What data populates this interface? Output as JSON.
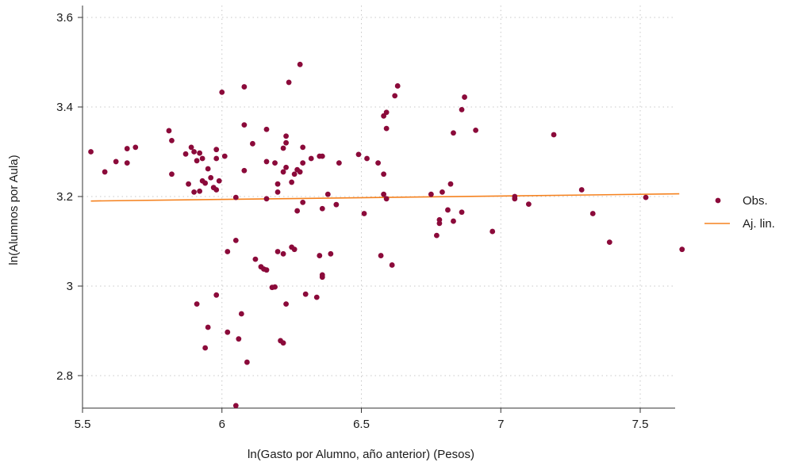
{
  "chart_data": {
    "type": "scatter",
    "xlabel": "ln(Gasto por Alumno, año anterior) (Pesos)",
    "ylabel": "ln(Alumnos por Aula)",
    "xlim": [
      5.5,
      7.65
    ],
    "ylim": [
      2.72,
      3.62
    ],
    "xticks": [
      5.5,
      6,
      6.5,
      7,
      7.5
    ],
    "xtick_labels": [
      "5.5",
      "6",
      "6.5",
      "7",
      "7.5"
    ],
    "yticks": [
      2.8,
      3,
      3.2,
      3.4,
      3.6
    ],
    "ytick_labels": [
      "2.8",
      "3",
      "3.2",
      "3.4",
      "3.6"
    ],
    "grid": "dotted",
    "legend_position": "right",
    "series": [
      {
        "name": "Obs.",
        "color": "#8b0a3a",
        "points": [
          [
            5.53,
            3.3
          ],
          [
            5.58,
            3.255
          ],
          [
            5.62,
            3.278
          ],
          [
            5.66,
            3.307
          ],
          [
            5.66,
            3.275
          ],
          [
            5.69,
            3.31
          ],
          [
            5.81,
            3.347
          ],
          [
            5.82,
            3.325
          ],
          [
            5.82,
            3.25
          ],
          [
            5.87,
            3.295
          ],
          [
            5.88,
            3.228
          ],
          [
            5.89,
            3.31
          ],
          [
            5.9,
            3.3
          ],
          [
            5.9,
            3.21
          ],
          [
            5.91,
            3.28
          ],
          [
            5.92,
            3.212
          ],
          [
            5.92,
            3.297
          ],
          [
            5.93,
            3.235
          ],
          [
            5.93,
            3.285
          ],
          [
            5.94,
            3.23
          ],
          [
            5.95,
            3.262
          ],
          [
            5.96,
            3.242
          ],
          [
            5.97,
            3.22
          ],
          [
            5.98,
            3.215
          ],
          [
            5.98,
            3.285
          ],
          [
            5.98,
            3.305
          ],
          [
            5.99,
            3.235
          ],
          [
            6.0,
            3.433
          ],
          [
            6.01,
            3.29
          ],
          [
            5.98,
            2.98
          ],
          [
            5.91,
            2.96
          ],
          [
            5.95,
            2.908
          ],
          [
            5.94,
            2.862
          ],
          [
            6.02,
            2.897
          ],
          [
            6.02,
            3.077
          ],
          [
            6.05,
            3.102
          ],
          [
            6.05,
            3.198
          ],
          [
            6.06,
            2.882
          ],
          [
            6.07,
            2.938
          ],
          [
            6.08,
            3.445
          ],
          [
            6.08,
            3.36
          ],
          [
            6.08,
            3.258
          ],
          [
            6.09,
            2.83
          ],
          [
            6.05,
            2.733
          ],
          [
            6.11,
            3.318
          ],
          [
            6.12,
            3.06
          ],
          [
            6.14,
            3.043
          ],
          [
            6.15,
            3.038
          ],
          [
            6.16,
            3.036
          ],
          [
            6.16,
            3.278
          ],
          [
            6.16,
            3.35
          ],
          [
            6.16,
            3.195
          ],
          [
            6.18,
            2.997
          ],
          [
            6.19,
            2.998
          ],
          [
            6.19,
            3.275
          ],
          [
            6.2,
            3.228
          ],
          [
            6.2,
            3.21
          ],
          [
            6.2,
            3.077
          ],
          [
            6.21,
            2.878
          ],
          [
            6.22,
            2.873
          ],
          [
            6.22,
            3.072
          ],
          [
            6.22,
            3.255
          ],
          [
            6.22,
            3.308
          ],
          [
            6.23,
            3.32
          ],
          [
            6.23,
            3.335
          ],
          [
            6.23,
            3.265
          ],
          [
            6.23,
            2.96
          ],
          [
            6.24,
            3.455
          ],
          [
            6.25,
            3.087
          ],
          [
            6.25,
            3.232
          ],
          [
            6.26,
            3.082
          ],
          [
            6.26,
            3.25
          ],
          [
            6.27,
            3.168
          ],
          [
            6.27,
            3.26
          ],
          [
            6.28,
            3.495
          ],
          [
            6.28,
            3.255
          ],
          [
            6.29,
            3.31
          ],
          [
            6.29,
            3.275
          ],
          [
            6.29,
            3.187
          ],
          [
            6.3,
            2.982
          ],
          [
            6.32,
            3.285
          ],
          [
            6.34,
            2.975
          ],
          [
            6.35,
            3.068
          ],
          [
            6.35,
            3.29
          ],
          [
            6.36,
            3.025
          ],
          [
            6.36,
            3.02
          ],
          [
            6.36,
            3.173
          ],
          [
            6.36,
            3.29
          ],
          [
            6.38,
            3.205
          ],
          [
            6.39,
            3.072
          ],
          [
            6.41,
            3.182
          ],
          [
            6.42,
            3.275
          ],
          [
            6.49,
            3.294
          ],
          [
            6.51,
            3.162
          ],
          [
            6.52,
            3.285
          ],
          [
            6.56,
            3.275
          ],
          [
            6.57,
            3.068
          ],
          [
            6.58,
            3.25
          ],
          [
            6.58,
            3.38
          ],
          [
            6.58,
            3.205
          ],
          [
            6.59,
            3.388
          ],
          [
            6.59,
            3.352
          ],
          [
            6.59,
            3.195
          ],
          [
            6.61,
            3.047
          ],
          [
            6.62,
            3.425
          ],
          [
            6.63,
            3.447
          ],
          [
            6.75,
            3.205
          ],
          [
            6.77,
            3.113
          ],
          [
            6.78,
            3.148
          ],
          [
            6.78,
            3.14
          ],
          [
            6.79,
            3.21
          ],
          [
            6.81,
            3.17
          ],
          [
            6.82,
            3.228
          ],
          [
            6.83,
            3.145
          ],
          [
            6.83,
            3.342
          ],
          [
            6.86,
            3.394
          ],
          [
            6.86,
            3.165
          ],
          [
            6.87,
            3.422
          ],
          [
            6.91,
            3.348
          ],
          [
            6.97,
            3.122
          ],
          [
            7.05,
            3.2
          ],
          [
            7.05,
            3.195
          ],
          [
            7.1,
            3.183
          ],
          [
            7.19,
            3.338
          ],
          [
            7.29,
            3.215
          ],
          [
            7.33,
            3.162
          ],
          [
            7.39,
            3.098
          ],
          [
            7.52,
            3.198
          ],
          [
            7.65,
            3.082
          ]
        ]
      },
      {
        "name": "Aj. lin.",
        "color": "#f5821f",
        "line": [
          [
            5.53,
            3.19
          ],
          [
            7.64,
            3.206
          ]
        ]
      }
    ]
  }
}
